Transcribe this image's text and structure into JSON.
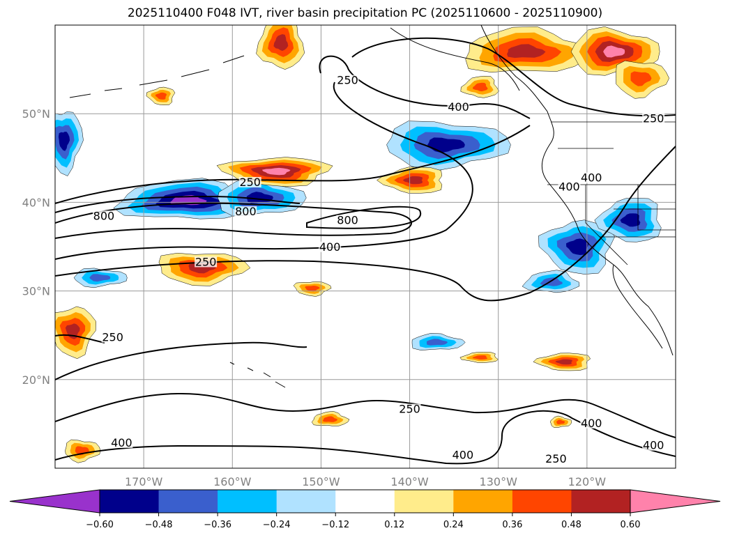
{
  "chart_data": {
    "type": "heatmap",
    "title": "2025110400 F048 IVT, river basin precipitation PC (2025110600 - 2025110900)",
    "lon_range": [
      -180,
      -110
    ],
    "lat_range": [
      10,
      60
    ],
    "grid": true,
    "xticks": [
      {
        "lon": -170,
        "label": "170°W"
      },
      {
        "lon": -160,
        "label": "160°W"
      },
      {
        "lon": -150,
        "label": "150°W"
      },
      {
        "lon": -140,
        "label": "140°W"
      },
      {
        "lon": -130,
        "label": "130°W"
      },
      {
        "lon": -120,
        "label": "120°W"
      }
    ],
    "yticks": [
      {
        "lat": 50,
        "label": "50°N"
      },
      {
        "lat": 40,
        "label": "40°N"
      },
      {
        "lat": 30,
        "label": "30°N"
      },
      {
        "lat": 20,
        "label": "20°N"
      }
    ],
    "colorbar": {
      "bounds": [
        -0.6,
        -0.48,
        -0.36,
        -0.24,
        -0.12,
        0.12,
        0.24,
        0.36,
        0.48,
        0.6
      ],
      "tick_labels": [
        "−0.60",
        "−0.48",
        "−0.36",
        "−0.24",
        "−0.12",
        "0.12",
        "0.24",
        "0.36",
        "0.48",
        "0.60"
      ],
      "colors": [
        "#9932CC",
        "#00008B",
        "#3A5FCD",
        "#00BFFF",
        "#B0E2FF",
        "#FFFFFF",
        "#FFEC8B",
        "#FFA500",
        "#FF4500",
        "#B22222",
        "#FF82AB"
      ],
      "extend": "both"
    },
    "precip_pc_features": [
      {
        "lon": -165,
        "lat": 40.2,
        "rlon": 8,
        "rlat": 2.2,
        "peak": -0.66
      },
      {
        "lon": -157,
        "lat": 40.5,
        "rlon": 5,
        "rlat": 2.0,
        "peak": -0.54
      },
      {
        "lon": -136,
        "lat": 46.5,
        "rlon": 7,
        "rlat": 2.6,
        "peak": -0.54
      },
      {
        "lon": -179,
        "lat": 47,
        "rlon": 2,
        "rlat": 3.5,
        "peak": -0.54
      },
      {
        "lon": -121,
        "lat": 35,
        "rlon": 4,
        "rlat": 3,
        "peak": -0.54
      },
      {
        "lon": -115,
        "lat": 38,
        "rlon": 3.5,
        "rlat": 2.5,
        "peak": -0.54
      },
      {
        "lon": -124,
        "lat": 31,
        "rlon": 3,
        "rlat": 1.2,
        "peak": -0.42
      },
      {
        "lon": -137,
        "lat": 24.2,
        "rlon": 3,
        "rlat": 0.9,
        "peak": -0.42
      },
      {
        "lon": -175,
        "lat": 31.5,
        "rlon": 3,
        "rlat": 1,
        "peak": -0.42
      },
      {
        "lon": -163.5,
        "lat": 32.6,
        "rlon": 5,
        "rlat": 1.8,
        "peak": 0.54
      },
      {
        "lon": -155,
        "lat": 43.5,
        "rlon": 6,
        "rlat": 1.6,
        "peak": 0.66
      },
      {
        "lon": -139.5,
        "lat": 42.5,
        "rlon": 3.5,
        "rlat": 1.5,
        "peak": 0.54
      },
      {
        "lon": -154.5,
        "lat": 58,
        "rlon": 2.5,
        "rlat": 3,
        "peak": 0.54
      },
      {
        "lon": -127,
        "lat": 57,
        "rlon": 7,
        "rlat": 2.5,
        "peak": 0.54
      },
      {
        "lon": -117,
        "lat": 57,
        "rlon": 5,
        "rlat": 2.5,
        "peak": 0.66
      },
      {
        "lon": -114,
        "lat": 54,
        "rlon": 3,
        "rlat": 2,
        "peak": 0.42
      },
      {
        "lon": -178,
        "lat": 25.5,
        "rlon": 2.5,
        "rlat": 2.8,
        "peak": 0.54
      },
      {
        "lon": -122.5,
        "lat": 22,
        "rlon": 3,
        "rlat": 1,
        "peak": 0.54
      },
      {
        "lon": -132,
        "lat": 53,
        "rlon": 2,
        "rlat": 1.2,
        "peak": 0.42
      },
      {
        "lon": -149,
        "lat": 15.5,
        "rlon": 2,
        "rlat": 0.8,
        "peak": 0.42
      },
      {
        "lon": -123,
        "lat": 15.2,
        "rlon": 1.2,
        "rlat": 0.6,
        "peak": 0.42
      },
      {
        "lon": -177,
        "lat": 12,
        "rlon": 2,
        "rlat": 1.2,
        "peak": 0.42
      },
      {
        "lon": -151,
        "lat": 30.3,
        "rlon": 2,
        "rlat": 0.8,
        "peak": 0.42
      },
      {
        "lon": -168,
        "lat": 52,
        "rlon": 1.5,
        "rlat": 1,
        "peak": 0.42
      },
      {
        "lon": -132,
        "lat": 22.5,
        "rlon": 2,
        "rlat": 0.6,
        "peak": 0.42
      }
    ],
    "ivt_contour_levels": [
      250,
      400,
      800
    ],
    "contour_labels": [
      {
        "text": "250",
        "lon": -158,
        "lat": 42.0
      },
      {
        "text": "800",
        "lon": -174.5,
        "lat": 38.2
      },
      {
        "text": "800",
        "lon": -158.5,
        "lat": 38.7
      },
      {
        "text": "800",
        "lon": -147,
        "lat": 37.7
      },
      {
        "text": "400",
        "lon": -149,
        "lat": 34.7
      },
      {
        "text": "250",
        "lon": -163,
        "lat": 33.0
      },
      {
        "text": "250",
        "lon": -147,
        "lat": 53.5
      },
      {
        "text": "400",
        "lon": -134.5,
        "lat": 50.5
      },
      {
        "text": "250",
        "lon": -112.5,
        "lat": 49.2
      },
      {
        "text": "400",
        "lon": -119.5,
        "lat": 42.5
      },
      {
        "text": "400",
        "lon": -122,
        "lat": 41.5
      },
      {
        "text": "250",
        "lon": -173.5,
        "lat": 24.5
      },
      {
        "text": "250",
        "lon": -140,
        "lat": 16.4
      },
      {
        "text": "400",
        "lon": -172.5,
        "lat": 12.6
      },
      {
        "text": "400",
        "lon": -119.5,
        "lat": 14.8
      },
      {
        "text": "400",
        "lon": -112.5,
        "lat": 12.3
      },
      {
        "text": "400",
        "lon": -134,
        "lat": 11.2
      },
      {
        "text": "250",
        "lon": -123.5,
        "lat": 10.8
      }
    ]
  }
}
